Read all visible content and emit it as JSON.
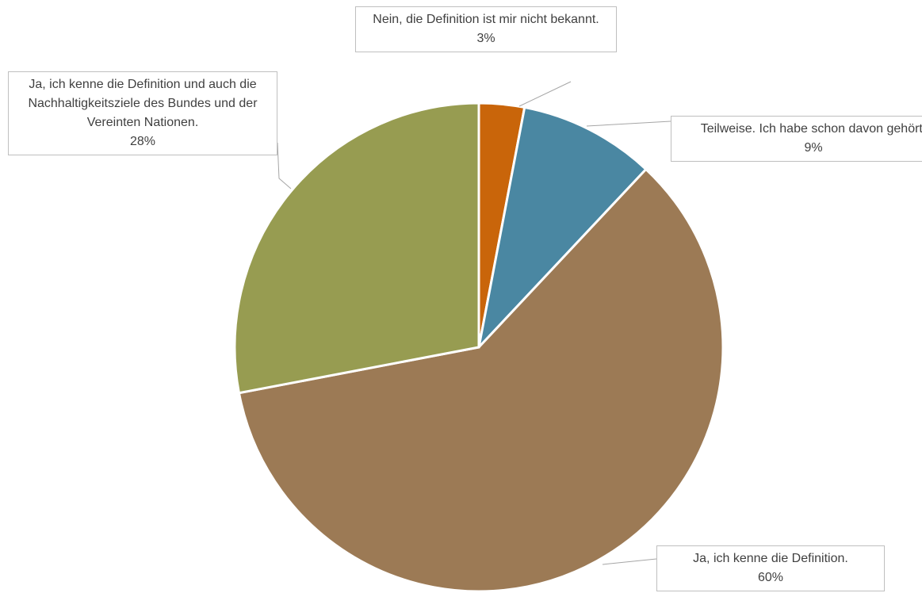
{
  "chart_data": {
    "type": "pie",
    "categories": [
      "Nein, die Definition ist mir nicht bekannt.",
      "Teilweise. Ich habe schon davon gehört.",
      "Ja, ich kenne die Definition.",
      "Ja, ich kenne die Definition und auch die Nachhaltigkeitsziele des Bundes und der Vereinten Nationen."
    ],
    "values": [
      3,
      9,
      60,
      28
    ],
    "value_labels": [
      "3%",
      "9%",
      "60%",
      "28%"
    ],
    "colors": [
      "#c9650a",
      "#4a87a2",
      "#9c7a55",
      "#979c51"
    ]
  }
}
